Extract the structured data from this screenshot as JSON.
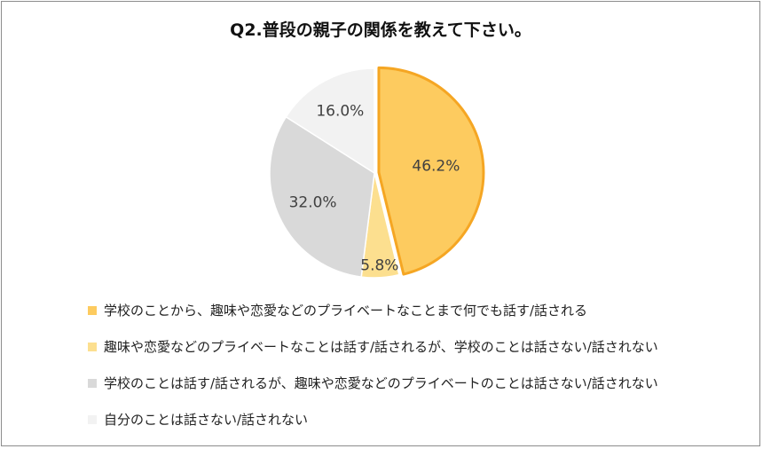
{
  "chart_data": {
    "type": "pie",
    "title": "Q2.普段の親子の関係を教えて下さい。",
    "start_angle_deg": 0,
    "direction": "clockwise",
    "exploded_index": 0,
    "legend_position": "bottom",
    "slices": [
      {
        "label": "学校のことから、趣味や恋愛などのプライベートなことまで何でも話す/話される",
        "value": 46.2,
        "value_label": "46.2%",
        "color": "#FDCB5F",
        "stroke": "#F5A623"
      },
      {
        "label": "趣味や恋愛などのプライベートなことは話す/話されるが、学校のことは話さない/話されない",
        "value": 5.8,
        "value_label": "5.8%",
        "color": "#FCDF8F",
        "stroke": "#FFFFFF"
      },
      {
        "label": "学校のことは話す/話されるが、趣味や恋愛などのプライベートのことは話さない/話されない",
        "value": 32.0,
        "value_label": "32.0%",
        "color": "#D9D9D9",
        "stroke": "#FFFFFF"
      },
      {
        "label": "自分のことは話さない/話されない",
        "value": 16.0,
        "value_label": "16.0%",
        "color": "#F2F2F2",
        "stroke": "#FFFFFF"
      }
    ]
  }
}
